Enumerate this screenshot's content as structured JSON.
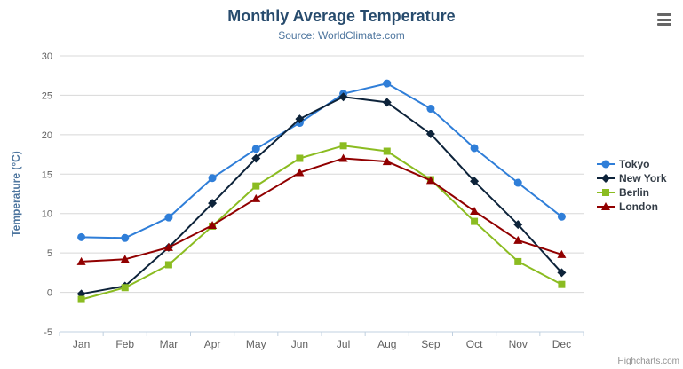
{
  "header": {
    "title": "Monthly Average Temperature",
    "subtitle": "Source: WorldClimate.com"
  },
  "menu": {
    "icon": "hamburger-icon"
  },
  "credits": {
    "label": "Highcharts.com"
  },
  "chart_data": {
    "type": "line",
    "title": "Monthly Average Temperature",
    "subtitle": "Source: WorldClimate.com",
    "categories": [
      "Jan",
      "Feb",
      "Mar",
      "Apr",
      "May",
      "Jun",
      "Jul",
      "Aug",
      "Sep",
      "Oct",
      "Nov",
      "Dec"
    ],
    "xlabel": "",
    "ylabel": "Temperature (°C)",
    "ylim": [
      -5,
      30
    ],
    "ytick_step": 5,
    "grid": true,
    "legend_position": "right",
    "grid_color": "#d8d8d8",
    "axis_line_color": "#c0d0e0",
    "tick_label_color": "#606060",
    "axis_title_color": "#4d759e",
    "series": [
      {
        "name": "Tokyo",
        "color": "#2f7ed8",
        "marker": "circle",
        "values": [
          7.0,
          6.9,
          9.5,
          14.5,
          18.2,
          21.5,
          25.2,
          26.5,
          23.3,
          18.3,
          13.9,
          9.6
        ]
      },
      {
        "name": "New York",
        "color": "#0d233a",
        "marker": "diamond",
        "values": [
          -0.2,
          0.8,
          5.7,
          11.3,
          17.0,
          22.0,
          24.8,
          24.1,
          20.1,
          14.1,
          8.6,
          2.5
        ]
      },
      {
        "name": "Berlin",
        "color": "#8bbc21",
        "marker": "square",
        "values": [
          -0.9,
          0.6,
          3.5,
          8.4,
          13.5,
          17.0,
          18.6,
          17.9,
          14.3,
          9.0,
          3.9,
          1.0
        ]
      },
      {
        "name": "London",
        "color": "#910000",
        "marker": "triangle",
        "values": [
          3.9,
          4.2,
          5.7,
          8.5,
          11.9,
          15.2,
          17.0,
          16.6,
          14.2,
          10.3,
          6.6,
          4.8
        ]
      }
    ]
  }
}
